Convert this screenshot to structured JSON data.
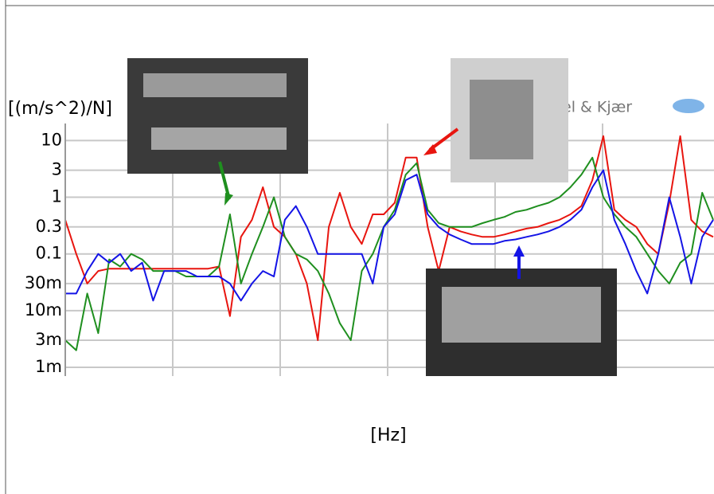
{
  "chart_data": {
    "type": "line",
    "y_label": "[(m/s^2)/N]",
    "x_label": "[Hz]",
    "brand": "el & Kjær",
    "log_y": true,
    "grid": true,
    "ylim": [
      0.0007,
      20
    ],
    "yticks": [
      10,
      3,
      1,
      0.3,
      0.1,
      {
        "value": 0.03,
        "label": "30m"
      },
      {
        "value": 0.01,
        "label": "10m"
      },
      {
        "value": 0.003,
        "label": "3m"
      },
      {
        "value": 0.001,
        "label": "1m"
      }
    ],
    "categories": [
      null,
      null,
      null,
      null,
      null,
      null,
      null,
      null,
      null,
      null,
      null,
      null,
      null,
      null,
      null,
      null,
      null,
      null,
      null,
      null,
      null,
      null,
      null,
      null,
      null,
      null,
      null,
      null,
      null,
      null,
      null,
      null,
      null,
      null,
      null,
      null,
      null,
      null,
      null,
      null,
      null,
      null,
      null,
      null,
      null,
      null,
      null,
      null,
      null,
      null,
      null,
      null,
      null,
      null,
      null,
      null,
      null,
      null,
      null,
      null
    ],
    "series": [
      {
        "color": "#e8150f",
        "values": [
          0.4,
          0.1,
          0.03,
          0.05,
          0.055,
          0.055,
          0.055,
          0.055,
          0.055,
          0.055,
          0.055,
          0.055,
          0.055,
          0.055,
          0.06,
          0.008,
          0.2,
          0.4,
          1.5,
          0.3,
          0.2,
          0.1,
          0.03,
          0.003,
          0.3,
          1.2,
          0.3,
          0.15,
          0.5,
          0.5,
          0.8,
          5,
          5,
          0.3,
          0.05,
          0.3,
          0.25,
          0.22,
          0.2,
          0.2,
          0.22,
          0.25,
          0.28,
          0.3,
          0.35,
          0.4,
          0.5,
          0.7,
          2,
          12,
          0.6,
          0.4,
          0.3,
          0.15,
          0.1,
          0.8,
          12,
          0.4,
          0.25,
          0.2
        ]
      },
      {
        "color": "#1f8f1f",
        "values": [
          0.003,
          0.002,
          0.02,
          0.004,
          0.08,
          0.06,
          0.1,
          0.08,
          0.05,
          0.05,
          0.05,
          0.04,
          0.04,
          0.04,
          0.06,
          0.5,
          0.03,
          0.1,
          0.3,
          1,
          0.2,
          0.1,
          0.08,
          0.05,
          0.02,
          0.006,
          0.003,
          0.05,
          0.1,
          0.3,
          0.6,
          2.5,
          4,
          0.6,
          0.35,
          0.3,
          0.3,
          0.3,
          0.35,
          0.4,
          0.45,
          0.55,
          0.6,
          0.7,
          0.8,
          1,
          1.5,
          2.5,
          5,
          1,
          0.5,
          0.3,
          0.2,
          0.1,
          0.05,
          0.03,
          0.07,
          0.1,
          1.2,
          0.4
        ]
      },
      {
        "color": "#1414e6",
        "values": [
          0.02,
          0.02,
          0.05,
          0.1,
          0.07,
          0.1,
          0.05,
          0.07,
          0.015,
          0.05,
          0.05,
          0.05,
          0.04,
          0.04,
          0.04,
          0.03,
          0.015,
          0.03,
          0.05,
          0.04,
          0.4,
          0.7,
          0.3,
          0.1,
          0.1,
          0.1,
          0.1,
          0.1,
          0.03,
          0.3,
          0.5,
          2,
          2.5,
          0.5,
          0.3,
          0.22,
          0.18,
          0.15,
          0.15,
          0.15,
          0.17,
          0.18,
          0.2,
          0.22,
          0.25,
          0.3,
          0.4,
          0.6,
          1.5,
          3,
          0.4,
          0.15,
          0.05,
          0.02,
          0.1,
          1,
          0.2,
          0.03,
          0.2,
          0.4
        ]
      }
    ]
  }
}
